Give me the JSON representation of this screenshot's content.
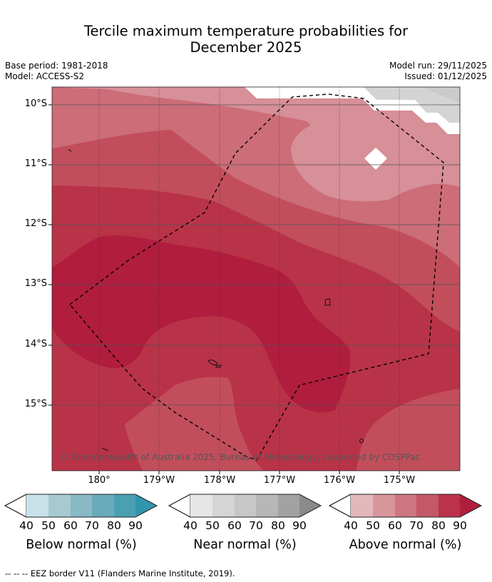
{
  "title": {
    "line1": "Tercile maximum temperature probabilities for",
    "line2": "December 2025"
  },
  "meta": {
    "base_period": "Base period: 1981-2018",
    "model": "Model: ACCESS-S2",
    "model_run": "Model run: 29/11/2025",
    "issued": "Issued: 01/12/2025"
  },
  "map": {
    "lat_labels": [
      "10°S",
      "11°S",
      "12°S",
      "13°S",
      "14°S",
      "15°S"
    ],
    "lon_labels": [
      "180°",
      "179°W",
      "178°W",
      "177°W",
      "176°W",
      "175°W"
    ],
    "copyright": "© Commonwealth of Australia 2025, Bureau of Meteorology, supported by COSPPac",
    "colors": {
      "above_50": "#d78f98",
      "above_60": "#cc6d78",
      "above_70": "#c24e5c",
      "above_80": "#b93348",
      "above_90": "#b11d3d",
      "near_40": "#d4d4d4",
      "near_50": "#cbcbcb"
    }
  },
  "colorbars": [
    {
      "label": "Below normal (%)",
      "ticks": [
        "40",
        "50",
        "60",
        "70",
        "80",
        "90"
      ],
      "colors": [
        "#c8e2ea",
        "#a7c9d1",
        "#89b9c5",
        "#6aaab9",
        "#4aa0b1",
        "#2f96ab"
      ]
    },
    {
      "label": "Near normal (%)",
      "ticks": [
        "40",
        "50",
        "60",
        "70",
        "80",
        "90"
      ],
      "colors": [
        "#e6e6e6",
        "#d5d5d5",
        "#c7c7c7",
        "#b7b7b7",
        "#a2a2a2",
        "#8a8a8a"
      ]
    },
    {
      "label": "Above normal (%)",
      "ticks": [
        "40",
        "50",
        "60",
        "70",
        "80",
        "90"
      ],
      "colors": [
        "#e2b8bd",
        "#d9959c",
        "#cd7680",
        "#c45866",
        "#bb3249",
        "#b01e3b"
      ]
    }
  ],
  "footer": "--  --  -- EEZ border V11 (Flanders Marine Institute, 2019)."
}
